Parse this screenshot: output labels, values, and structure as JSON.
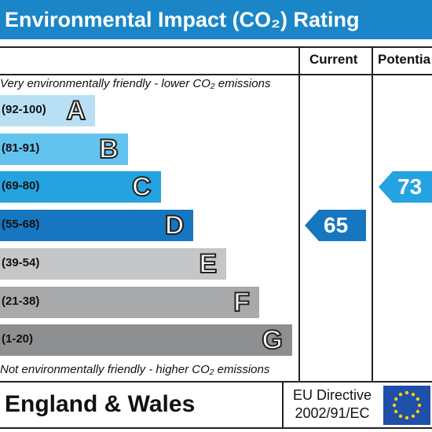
{
  "title": "Environmental Impact (CO₂) Rating",
  "columns": {
    "current": "Current",
    "potential": "Potentia"
  },
  "top_note": "Very environmentally friendly - lower CO₂ emissions",
  "bottom_note": "Not environmentally friendly - higher CO₂ emissions",
  "footer": {
    "region": "England & Wales",
    "directive_line1": "EU Directive",
    "directive_line2": "2002/91/EC"
  },
  "icons": {
    "flag": "eu-flag-icon"
  },
  "chart_data": {
    "type": "bar",
    "bands": [
      {
        "letter": "A",
        "range": "(92-100)",
        "color": "#b9dff5"
      },
      {
        "letter": "B",
        "range": "(81-91)",
        "color": "#63c3ef"
      },
      {
        "letter": "C",
        "range": "(69-80)",
        "color": "#25a3e0"
      },
      {
        "letter": "D",
        "range": "(55-68)",
        "color": "#1676c0"
      },
      {
        "letter": "E",
        "range": "(39-54)",
        "color": "#c5c6c8"
      },
      {
        "letter": "F",
        "range": "(21-38)",
        "color": "#a8a9ab"
      },
      {
        "letter": "G",
        "range": "(1-20)",
        "color": "#8e8f91"
      }
    ],
    "current": {
      "value": "65",
      "band": "D",
      "color": "#1676c0"
    },
    "potential": {
      "value": "73",
      "band": "C",
      "color": "#25a3e0"
    }
  }
}
